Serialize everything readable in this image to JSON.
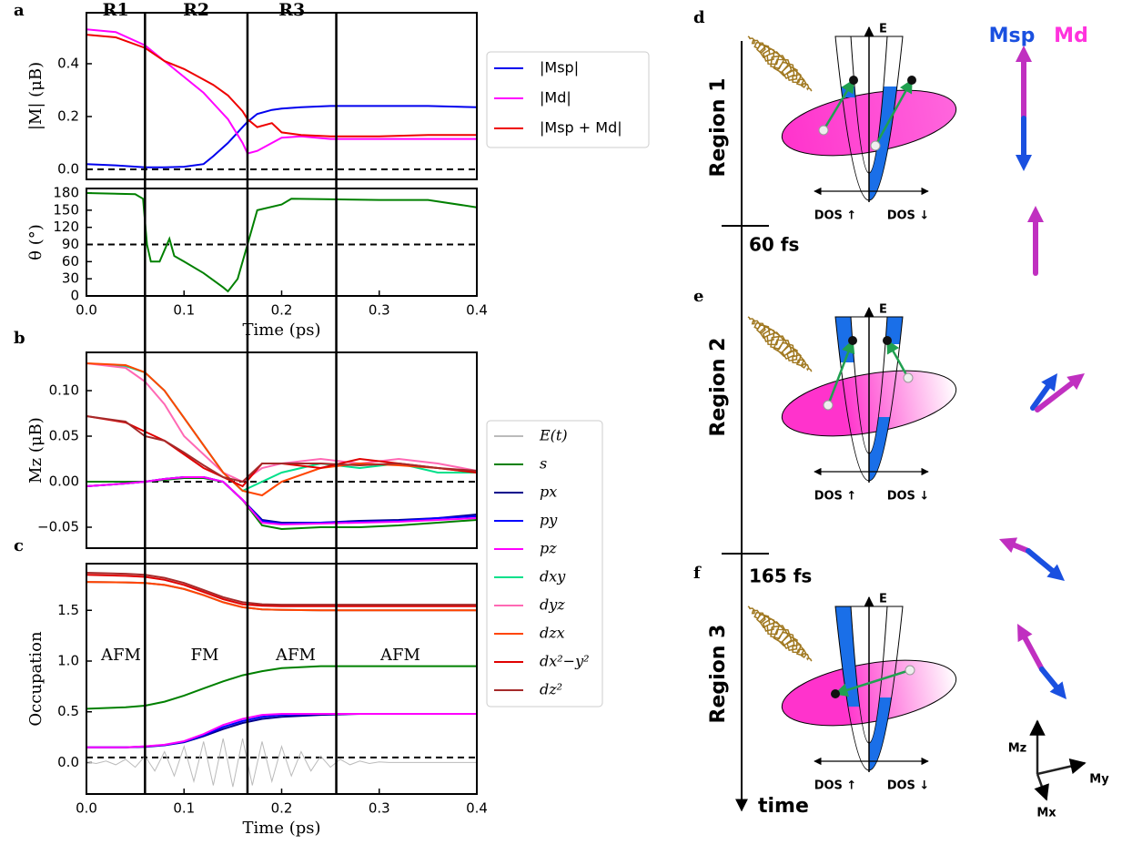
{
  "panel_letters": [
    "a",
    "b",
    "c",
    "d",
    "e",
    "f"
  ],
  "region_labels": [
    "R1",
    "R2",
    "R3"
  ],
  "region_boundaries": [
    0.06,
    0.165,
    0.256
  ],
  "chart_data": [
    {
      "type": "line",
      "ylabel": "|M| (μB)",
      "xlim": [
        0,
        0.4
      ],
      "ylim": [
        -0.038,
        0.593
      ],
      "yticks": [
        {
          "value": 0,
          "label": "0.0"
        },
        0.2,
        0.4
      ],
      "hline": 0,
      "legend": "outside right",
      "x": [
        0,
        0.03,
        0.06,
        0.08,
        0.1,
        0.12,
        0.13,
        0.145,
        0.16,
        0.165,
        0.175,
        0.19,
        0.2,
        0.22,
        0.25,
        0.3,
        0.35,
        0.4
      ],
      "series": [
        {
          "name": "|Msp|",
          "color": "#0000ee",
          "values": [
            0.02,
            0.015,
            0.008,
            0.008,
            0.01,
            0.02,
            0.05,
            0.1,
            0.16,
            0.18,
            0.21,
            0.225,
            0.23,
            0.235,
            0.24,
            0.24,
            0.24,
            0.235
          ]
        },
        {
          "name": "|Md|",
          "color": "#ff00ff",
          "values": [
            0.53,
            0.52,
            0.47,
            0.41,
            0.35,
            0.29,
            0.25,
            0.19,
            0.1,
            0.06,
            0.07,
            0.1,
            0.12,
            0.125,
            0.115,
            0.115,
            0.115,
            0.115
          ]
        },
        {
          "name": "|Msp + Md|",
          "color": "#ee0000",
          "values": [
            0.51,
            0.5,
            0.46,
            0.41,
            0.38,
            0.34,
            0.32,
            0.28,
            0.22,
            0.19,
            0.16,
            0.175,
            0.14,
            0.13,
            0.125,
            0.125,
            0.13,
            0.13
          ]
        }
      ]
    },
    {
      "type": "line",
      "ylabel": "θ (°)",
      "xlabel": "Time (ps)",
      "xlim": [
        0,
        0.4
      ],
      "ylim": [
        0,
        188
      ],
      "yticks": [
        0,
        30,
        60,
        90,
        120,
        150,
        180
      ],
      "xticks": [
        {
          "value": 0,
          "label": "0.0"
        },
        0.1,
        0.2,
        0.3,
        0.4
      ],
      "hline": 90,
      "x": [
        0,
        0.05,
        0.058,
        0.062,
        0.066,
        0.075,
        0.085,
        0.09,
        0.1,
        0.12,
        0.14,
        0.145,
        0.155,
        0.165,
        0.175,
        0.2,
        0.21,
        0.3,
        0.35,
        0.4
      ],
      "series": [
        {
          "color": "#008000",
          "values": [
            180,
            178,
            170,
            90,
            60,
            60,
            100,
            70,
            60,
            40,
            15,
            8,
            30,
            90,
            150,
            160,
            170,
            168,
            168,
            155
          ]
        }
      ]
    },
    {
      "type": "line",
      "ylabel": "Mz (μB)",
      "xlim": [
        0,
        0.4
      ],
      "ylim": [
        -0.073,
        0.142
      ],
      "yticks": [
        {
          "value": -0.05,
          "label": "−0.05"
        },
        {
          "value": 0,
          "label": "0.00"
        },
        0.05,
        {
          "value": 0.1,
          "label": "0.10"
        }
      ],
      "hline": 0,
      "x": [
        0,
        0.04,
        0.06,
        0.08,
        0.1,
        0.12,
        0.14,
        0.16,
        0.18,
        0.2,
        0.24,
        0.28,
        0.32,
        0.36,
        0.4
      ],
      "series": [
        {
          "color": "#008000",
          "values": [
            0,
            0,
            0,
            0.002,
            0.004,
            0.004,
            0,
            -0.02,
            -0.048,
            -0.052,
            -0.05,
            -0.05,
            -0.048,
            -0.045,
            -0.042
          ]
        },
        {
          "color": "#00008b",
          "values": [
            -0.005,
            -0.002,
            0,
            0.003,
            0.005,
            0.005,
            0,
            -0.02,
            -0.042,
            -0.045,
            -0.045,
            -0.043,
            -0.042,
            -0.04,
            -0.036
          ]
        },
        {
          "color": "#0000ff",
          "values": [
            -0.005,
            -0.002,
            0,
            0.003,
            0.005,
            0.005,
            0,
            -0.02,
            -0.043,
            -0.046,
            -0.045,
            -0.044,
            -0.043,
            -0.04,
            -0.038
          ]
        },
        {
          "color": "#ff00ff",
          "values": [
            -0.005,
            -0.002,
            0,
            0.003,
            0.005,
            0.005,
            0,
            -0.02,
            -0.045,
            -0.047,
            -0.046,
            -0.045,
            -0.044,
            -0.042,
            -0.04
          ]
        },
        {
          "color": "#00e08a",
          "values": [
            0.13,
            0.127,
            0.12,
            0.1,
            0.07,
            0.04,
            0.01,
            -0.01,
            0,
            0.01,
            0.02,
            0.015,
            0.02,
            0.01,
            0.01
          ]
        },
        {
          "color": "#ff69b4",
          "values": [
            0.13,
            0.125,
            0.11,
            0.085,
            0.05,
            0.03,
            0.01,
            0,
            0.015,
            0.02,
            0.025,
            0.02,
            0.025,
            0.02,
            0.012
          ]
        },
        {
          "color": "#ff4500",
          "values": [
            0.13,
            0.128,
            0.12,
            0.1,
            0.07,
            0.04,
            0.01,
            -0.01,
            -0.015,
            0,
            0.015,
            0.02,
            0.018,
            0.015,
            0.01
          ]
        },
        {
          "color": "#e00000",
          "values": [
            0.072,
            0.065,
            0.055,
            0.045,
            0.03,
            0.015,
            0.005,
            -0.005,
            0.02,
            0.02,
            0.015,
            0.025,
            0.02,
            0.015,
            0.01
          ]
        },
        {
          "color": "#a52a2a",
          "values": [
            0.072,
            0.066,
            0.05,
            0.045,
            0.032,
            0.018,
            0.005,
            0,
            0.02,
            0.02,
            0.02,
            0.018,
            0.02,
            0.015,
            0.012
          ]
        }
      ]
    },
    {
      "type": "line",
      "ylabel": "Occupation",
      "xlabel": "Time (ps)",
      "xlim": [
        0,
        0.4
      ],
      "ylim": [
        -0.31,
        1.96
      ],
      "yticks": [
        {
          "value": 0,
          "label": "0.0"
        },
        0.5,
        {
          "value": 1,
          "label": "1.0"
        },
        1.5
      ],
      "xticks": [
        {
          "value": 0,
          "label": "0.0"
        },
        0.1,
        0.2,
        0.3,
        0.4
      ],
      "hline": 0.05,
      "legend": "outside right",
      "annotations": [
        "AFM",
        "FM",
        "AFM",
        "AFM"
      ],
      "x": [
        0,
        0.04,
        0.06,
        0.08,
        0.1,
        0.12,
        0.14,
        0.16,
        0.18,
        0.2,
        0.24,
        0.28,
        0.32,
        0.36,
        0.4
      ],
      "series": [
        {
          "name": "E(t)",
          "color": "#bbbbbb",
          "x": [
            0,
            0.01,
            0.02,
            0.03,
            0.04,
            0.05,
            0.06,
            0.07,
            0.08,
            0.09,
            0.1,
            0.11,
            0.12,
            0.13,
            0.14,
            0.15,
            0.16,
            0.17,
            0.18,
            0.19,
            0.2,
            0.21,
            0.22,
            0.23,
            0.24,
            0.25,
            0.26,
            0.27,
            0.28,
            0.29,
            0.3,
            0.31,
            0.32,
            0.33,
            0.34,
            0.35,
            0.36,
            0.37,
            0.38,
            0.39,
            0.4
          ],
          "values": [
            0.006,
            -0.009,
            0.015,
            -0.022,
            0.032,
            -0.046,
            0.063,
            -0.083,
            0.107,
            -0.132,
            0.159,
            -0.185,
            0.207,
            -0.225,
            0.236,
            -0.24,
            0.236,
            -0.225,
            0.207,
            -0.185,
            0.159,
            -0.132,
            0.107,
            -0.083,
            0.063,
            -0.046,
            0.032,
            -0.022,
            0.015,
            -0.009,
            0.006,
            0,
            0,
            0,
            0,
            0,
            0,
            0,
            0,
            0,
            0
          ]
        },
        {
          "name": "s",
          "color": "#008000",
          "values": [
            0.53,
            0.545,
            0.56,
            0.6,
            0.66,
            0.73,
            0.8,
            0.86,
            0.9,
            0.93,
            0.95,
            0.95,
            0.95,
            0.95,
            0.95
          ]
        },
        {
          "name": "px",
          "color": "#00008b",
          "values": [
            0.15,
            0.15,
            0.155,
            0.17,
            0.2,
            0.26,
            0.33,
            0.39,
            0.43,
            0.45,
            0.47,
            0.48,
            0.48,
            0.48,
            0.48
          ]
        },
        {
          "name": "py",
          "color": "#0000ff",
          "values": [
            0.15,
            0.15,
            0.158,
            0.173,
            0.205,
            0.27,
            0.35,
            0.41,
            0.45,
            0.47,
            0.48,
            0.48,
            0.48,
            0.48,
            0.48
          ]
        },
        {
          "name": "pz",
          "color": "#ff00ff",
          "values": [
            0.15,
            0.15,
            0.16,
            0.175,
            0.21,
            0.28,
            0.37,
            0.43,
            0.47,
            0.48,
            0.48,
            0.48,
            0.48,
            0.48,
            0.48
          ]
        },
        {
          "name": "dxy",
          "color": "#00e08a",
          "values": [
            1.78,
            1.775,
            1.77,
            1.75,
            1.71,
            1.65,
            1.58,
            1.53,
            1.51,
            1.505,
            1.5,
            1.5,
            1.5,
            1.5,
            1.5
          ]
        },
        {
          "name": "dyz",
          "color": "#ff69b4",
          "values": [
            1.78,
            1.775,
            1.77,
            1.75,
            1.71,
            1.65,
            1.58,
            1.53,
            1.51,
            1.505,
            1.5,
            1.5,
            1.5,
            1.5,
            1.5
          ]
        },
        {
          "name": "dzx",
          "color": "#ff4500",
          "values": [
            1.78,
            1.775,
            1.77,
            1.75,
            1.71,
            1.65,
            1.58,
            1.53,
            1.51,
            1.505,
            1.5,
            1.5,
            1.5,
            1.5,
            1.5
          ]
        },
        {
          "name": "dx²−y²",
          "color": "#e00000",
          "values": [
            1.85,
            1.84,
            1.83,
            1.8,
            1.75,
            1.68,
            1.61,
            1.56,
            1.545,
            1.54,
            1.54,
            1.54,
            1.54,
            1.54,
            1.54
          ]
        },
        {
          "name": "dz²",
          "color": "#a52a2a",
          "values": [
            1.87,
            1.86,
            1.85,
            1.82,
            1.77,
            1.7,
            1.63,
            1.58,
            1.56,
            1.555,
            1.555,
            1.555,
            1.555,
            1.555,
            1.555
          ]
        }
      ]
    }
  ],
  "diagram": {
    "spin_labels": [
      "Msp",
      "Md"
    ],
    "times": [
      "60 fs",
      "165 fs"
    ],
    "time_axis": "time",
    "axes": [
      "Mz",
      "My",
      "Mx"
    ],
    "panels": [
      {
        "region": "Region 1",
        "energy": "E",
        "dos_up": "DOS ↑",
        "dos_down": "DOS ↓"
      },
      {
        "region": "Region 2",
        "energy": "E",
        "dos_up": "DOS ↑",
        "dos_down": "DOS ↓"
      },
      {
        "region": "Region 3",
        "energy": "E",
        "dos_up": "DOS ↑",
        "dos_down": "DOS ↓"
      }
    ]
  }
}
